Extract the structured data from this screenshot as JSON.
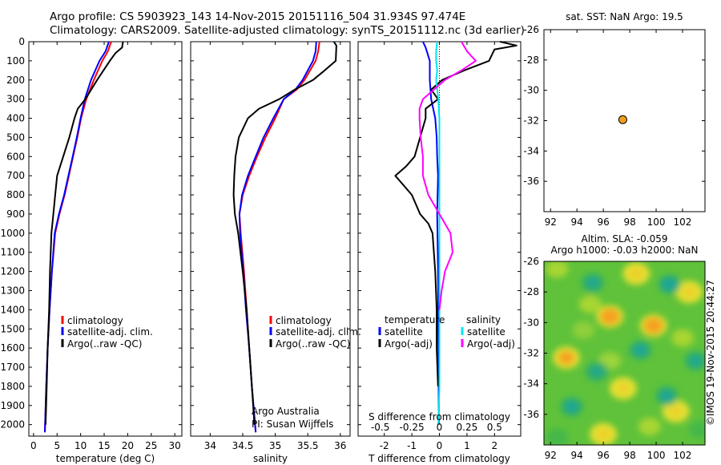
{
  "header": {
    "line1": "Argo profile: CS 5903923_143 14-Nov-2015 20151116_504 31.934S 97.474E",
    "line2": "Climatology: CARS2009. Satellite-adjusted climatology: synTS_20151112.nc (3d earlier)"
  },
  "colors": {
    "climatology": "#ff0000",
    "satellite": "#0000ff",
    "argo": "#000000",
    "sal_sat": "#00e5ee",
    "sal_argo": "#ff00ff"
  },
  "chart_data": [
    {
      "id": "temperature",
      "type": "line",
      "xlabel": "temperature (deg C)",
      "xlim": [
        -1,
        31.5
      ],
      "ylim": [
        0,
        2060
      ],
      "xticks": [
        "0",
        "5",
        "10",
        "15",
        "20",
        "25",
        "30"
      ],
      "xtick_values": [
        0,
        5,
        10,
        15,
        20,
        25,
        30
      ],
      "yticks": [
        "0",
        "100",
        "200",
        "300",
        "400",
        "500",
        "600",
        "700",
        "800",
        "900",
        "1000",
        "1100",
        "1200",
        "1300",
        "1400",
        "1500",
        "1600",
        "1700",
        "1800",
        "1900",
        "2000"
      ],
      "legend": [
        "climatology",
        "satellite-adj. clim.",
        "Argo(..raw -QC)"
      ],
      "series": [
        {
          "name": "climatology",
          "color": "#ff0000",
          "depth": [
            0,
            50,
            100,
            200,
            300,
            400,
            500,
            600,
            700,
            800,
            900,
            1000,
            1200,
            1400,
            1600,
            1800,
            2000,
            2040
          ],
          "values": [
            16.5,
            15.8,
            14.6,
            12.8,
            11.2,
            10.1,
            9.3,
            8.4,
            7.5,
            6.6,
            5.5,
            4.6,
            3.9,
            3.4,
            3.0,
            2.7,
            2.45,
            2.4
          ]
        },
        {
          "name": "satellite-adj. clim.",
          "color": "#0000ff",
          "depth": [
            0,
            50,
            100,
            200,
            300,
            400,
            500,
            600,
            700,
            800,
            900,
            1000,
            1200,
            1400,
            1600,
            1800,
            2000,
            2040
          ],
          "values": [
            16.0,
            15.3,
            14.0,
            12.2,
            10.9,
            10.0,
            9.2,
            8.3,
            7.4,
            6.5,
            5.4,
            4.5,
            3.9,
            3.4,
            3.0,
            2.7,
            2.45,
            2.4
          ]
        },
        {
          "name": "Argo(..raw -QC)",
          "color": "#000000",
          "depth": [
            0,
            30,
            60,
            100,
            200,
            300,
            350,
            400,
            500,
            600,
            700,
            800,
            900,
            1000,
            1200,
            1400,
            1600,
            1800,
            2000
          ],
          "values": [
            19.0,
            18.8,
            17.4,
            16.2,
            13.5,
            11.0,
            9.4,
            8.7,
            7.6,
            6.3,
            5.0,
            4.6,
            4.2,
            3.8,
            3.5,
            3.3,
            3.0,
            2.8,
            2.55
          ]
        }
      ]
    },
    {
      "id": "salinity",
      "type": "line",
      "xlabel": "salinity",
      "xlim": [
        33.7,
        36.15
      ],
      "ylim": [
        0,
        2060
      ],
      "xticks": [
        "34",
        "34.5",
        "35",
        "35.5",
        "36"
      ],
      "xtick_values": [
        34,
        34.5,
        35,
        35.5,
        36
      ],
      "legend": [
        "climatology",
        "satellite-adj. clim.",
        "Argo(..raw -QC)"
      ],
      "annotation": [
        "Argo Australia",
        "PI: Susan Wijffels"
      ],
      "series": [
        {
          "name": "climatology",
          "color": "#ff0000",
          "depth": [
            0,
            50,
            100,
            200,
            250,
            300,
            400,
            500,
            600,
            700,
            800,
            900,
            1000,
            1200,
            1400,
            1600,
            1800,
            2000,
            2040
          ],
          "values": [
            35.68,
            35.66,
            35.62,
            35.45,
            35.33,
            35.13,
            35.0,
            34.85,
            34.72,
            34.6,
            34.5,
            34.45,
            34.47,
            34.52,
            34.56,
            34.6,
            34.64,
            34.69,
            34.7
          ]
        },
        {
          "name": "satellite-adj. clim.",
          "color": "#0000ff",
          "depth": [
            0,
            50,
            100,
            200,
            250,
            300,
            400,
            500,
            600,
            700,
            800,
            900,
            1000,
            1200,
            1400,
            1600,
            1800,
            2000,
            2040
          ],
          "values": [
            35.63,
            35.62,
            35.58,
            35.42,
            35.31,
            35.13,
            34.97,
            34.82,
            34.7,
            34.58,
            34.49,
            34.45,
            34.46,
            34.51,
            34.55,
            34.6,
            34.64,
            34.69,
            34.7
          ]
        },
        {
          "name": "Argo(..raw -QC)",
          "color": "#000000",
          "depth": [
            0,
            20,
            100,
            150,
            200,
            250,
            300,
            350,
            400,
            500,
            600,
            700,
            800,
            900,
            1000,
            1200,
            1400,
            1600,
            1800,
            2000
          ],
          "values": [
            35.9,
            35.94,
            35.93,
            35.76,
            35.58,
            35.3,
            35.06,
            34.75,
            34.58,
            34.44,
            34.39,
            34.37,
            34.36,
            34.38,
            34.43,
            34.5,
            34.56,
            34.6,
            34.64,
            34.68
          ]
        }
      ]
    },
    {
      "id": "difference",
      "type": "line",
      "xlabel": "T difference from climatology",
      "x2label": "S difference from climatology",
      "xlim": [
        -2.95,
        2.95
      ],
      "ylim": [
        0,
        2060
      ],
      "xticks": [
        "-2",
        "-1",
        "0",
        "1",
        "2"
      ],
      "xtick_values": [
        -2,
        -1,
        0,
        1,
        2
      ],
      "x2ticks": [
        "-0.5",
        "-0.25",
        "0",
        "0.25",
        "0.5"
      ],
      "x2tick_values": [
        -0.5,
        -0.25,
        0,
        0.25,
        0.5
      ],
      "legend_titles": [
        "temperature",
        "salinity"
      ],
      "legend": [
        "satellite",
        "Argo(-adj)",
        "satellite",
        "Argo(-adj)"
      ],
      "series": [
        {
          "name": "T satellite",
          "color": "#0000ff",
          "depth": [
            0,
            30,
            100,
            200,
            300,
            400,
            500,
            600,
            700,
            900,
            1200,
            1500,
            1800,
            2000
          ],
          "values": [
            -0.6,
            -0.5,
            -0.35,
            -0.35,
            -0.3,
            -0.15,
            -0.1,
            -0.08,
            -0.05,
            -0.08,
            -0.05,
            -0.04,
            -0.03,
            -0.02
          ]
        },
        {
          "name": "T Argo(-adj)",
          "color": "#000000",
          "depth": [
            0,
            20,
            40,
            100,
            150,
            200,
            250,
            300,
            350,
            400,
            500,
            600,
            650,
            700,
            750,
            800,
            900,
            950,
            1000,
            1100,
            1200,
            1400,
            1600,
            1800
          ],
          "values": [
            2.2,
            2.8,
            2.0,
            1.8,
            0.9,
            0.1,
            -0.3,
            -0.05,
            -0.5,
            -0.5,
            -0.7,
            -0.9,
            -1.2,
            -1.6,
            -1.3,
            -1.0,
            -0.7,
            -0.4,
            -0.25,
            -0.2,
            -0.15,
            -0.1,
            -0.1,
            -0.05
          ]
        },
        {
          "name": "S satellite",
          "color": "#00e5ee",
          "depth": [
            0,
            50,
            100,
            150,
            200,
            300,
            400,
            600,
            800,
            1000,
            1200,
            1400,
            1600,
            1800,
            2000
          ],
          "values": [
            -0.02,
            -0.03,
            -0.03,
            -0.02,
            -0.03,
            -0.01,
            0.0,
            0.0,
            0.0,
            0.0,
            0.0,
            0.0,
            0.0,
            0.0,
            -0.01
          ]
        },
        {
          "name": "S Argo(-adj)",
          "color": "#ff00ff",
          "depth": [
            0,
            50,
            100,
            150,
            200,
            250,
            300,
            350,
            400,
            500,
            600,
            700,
            800,
            900,
            1000,
            1100,
            1200,
            1300,
            1400
          ],
          "values": [
            0.2,
            0.25,
            0.33,
            0.2,
            0.05,
            -0.05,
            -0.15,
            -0.18,
            -0.18,
            -0.17,
            -0.15,
            -0.15,
            -0.1,
            0.0,
            0.1,
            0.12,
            0.05,
            0.02,
            0.0
          ]
        }
      ]
    },
    {
      "id": "map",
      "type": "scatter",
      "title": "sat. SST: NaN Argo: 19.5",
      "xlim": [
        91.5,
        103.7
      ],
      "ylim": [
        -38,
        -26
      ],
      "xticks": [
        "92",
        "94",
        "96",
        "98",
        "100",
        "102"
      ],
      "xtick_values": [
        92,
        94,
        96,
        98,
        100,
        102
      ],
      "yticks": [
        "-26",
        "-28",
        "-30",
        "-32",
        "-34",
        "-36"
      ],
      "ytick_values": [
        -26,
        -28,
        -30,
        -32,
        -34,
        -36
      ],
      "points": [
        {
          "lon": 97.474,
          "lat": -31.934,
          "color": "#f0a020"
        }
      ]
    },
    {
      "id": "sla",
      "type": "heatmap",
      "title": "Altim. SLA: -0.059",
      "subtitle": "Argo h1000: -0.03 h2000: NaN",
      "xlim": [
        91.5,
        103.7
      ],
      "ylim": [
        -38,
        -26
      ],
      "xticks": [
        "92",
        "94",
        "96",
        "98",
        "100",
        "102"
      ],
      "xtick_values": [
        92,
        94,
        96,
        98,
        100,
        102
      ],
      "yticks": [
        "-26",
        "-28",
        "-30",
        "-32",
        "-34",
        "-36"
      ],
      "ytick_values": [
        -26,
        -28,
        -30,
        -32,
        -34,
        -36
      ],
      "highs": [
        {
          "lon": 96.5,
          "lat": -29.6,
          "v": 1
        },
        {
          "lon": 99.8,
          "lat": -30.2,
          "v": 1
        },
        {
          "lon": 93.2,
          "lat": -32.3,
          "v": 0.8
        },
        {
          "lon": 98.5,
          "lat": -26.8,
          "v": 0.7
        },
        {
          "lon": 96.0,
          "lat": -37.3,
          "v": 0.6
        },
        {
          "lon": 102.5,
          "lat": -28.0,
          "v": 0.6
        },
        {
          "lon": 97.5,
          "lat": -34.3,
          "v": 0.5
        },
        {
          "lon": 101.5,
          "lat": -35.8,
          "v": 0.5
        }
      ],
      "lows": [
        {
          "lon": 101.0,
          "lat": -27.5,
          "v": 1
        },
        {
          "lon": 98.8,
          "lat": -31.8,
          "v": 0.8
        },
        {
          "lon": 93.6,
          "lat": -35.5,
          "v": 0.8
        },
        {
          "lon": 100.8,
          "lat": -34.8,
          "v": 0.8
        },
        {
          "lon": 95.2,
          "lat": -27.4,
          "v": 0.6
        },
        {
          "lon": 103.0,
          "lat": -32.5,
          "v": 0.6
        },
        {
          "lon": 95.5,
          "lat": -33.2,
          "v": 0.5
        }
      ]
    }
  ],
  "footer": {
    "stamp": "©IMOS 19-Nov-2015 20:44:27"
  }
}
